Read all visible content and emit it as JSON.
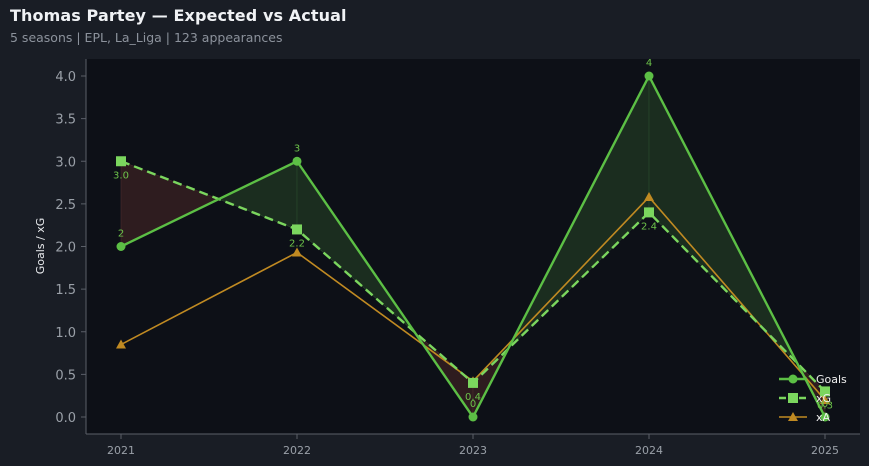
{
  "header": {
    "title": "Thomas Partey — Expected vs Actual",
    "subtitle": "5 seasons | EPL, La_Liga | 123 appearances"
  },
  "colors": {
    "background": "#191d25",
    "plot_background": "#0d1017",
    "goals": "#5cbf45",
    "xg": "#7bd65e",
    "xa": "#c08a22",
    "overperform_fill": "#1b2d1f",
    "underperform_fill": "#2e1c1f"
  },
  "chart_data": {
    "type": "line",
    "title": "Thomas Partey — Expected vs Actual",
    "subtitle": "5 seasons | EPL, La_Liga | 123 appearances",
    "xlabel": "",
    "ylabel": "Goals / xG",
    "categories": [
      "2021",
      "2022",
      "2023",
      "2024",
      "2025"
    ],
    "ylim": [
      -0.2,
      4.2
    ],
    "yticks": [
      "0.0",
      "0.5",
      "1.0",
      "1.5",
      "2.0",
      "2.5",
      "3.0",
      "3.5",
      "4.0"
    ],
    "grid": false,
    "legend_position": "lower right",
    "series": [
      {
        "name": "Goals",
        "style": "solid line, circle markers",
        "values": [
          2,
          3,
          0,
          4,
          0
        ],
        "labels": [
          "2",
          "3",
          "0",
          "4",
          "0"
        ]
      },
      {
        "name": "xG",
        "style": "dashed line, square markers",
        "values": [
          3.0,
          2.2,
          0.4,
          2.4,
          0.3
        ],
        "labels": [
          "3.0",
          "2.2",
          "0.4",
          "2.4",
          "0.3"
        ]
      },
      {
        "name": "xA",
        "style": "solid line, triangle markers",
        "values": [
          0.85,
          1.93,
          0.42,
          2.58,
          0.2
        ]
      }
    ],
    "annotations": "Fill between Goals and xG: green where Goals > xG, red where Goals < xG"
  },
  "legend": {
    "items": [
      {
        "label": "Goals"
      },
      {
        "label": "xG"
      },
      {
        "label": "xA"
      }
    ]
  }
}
